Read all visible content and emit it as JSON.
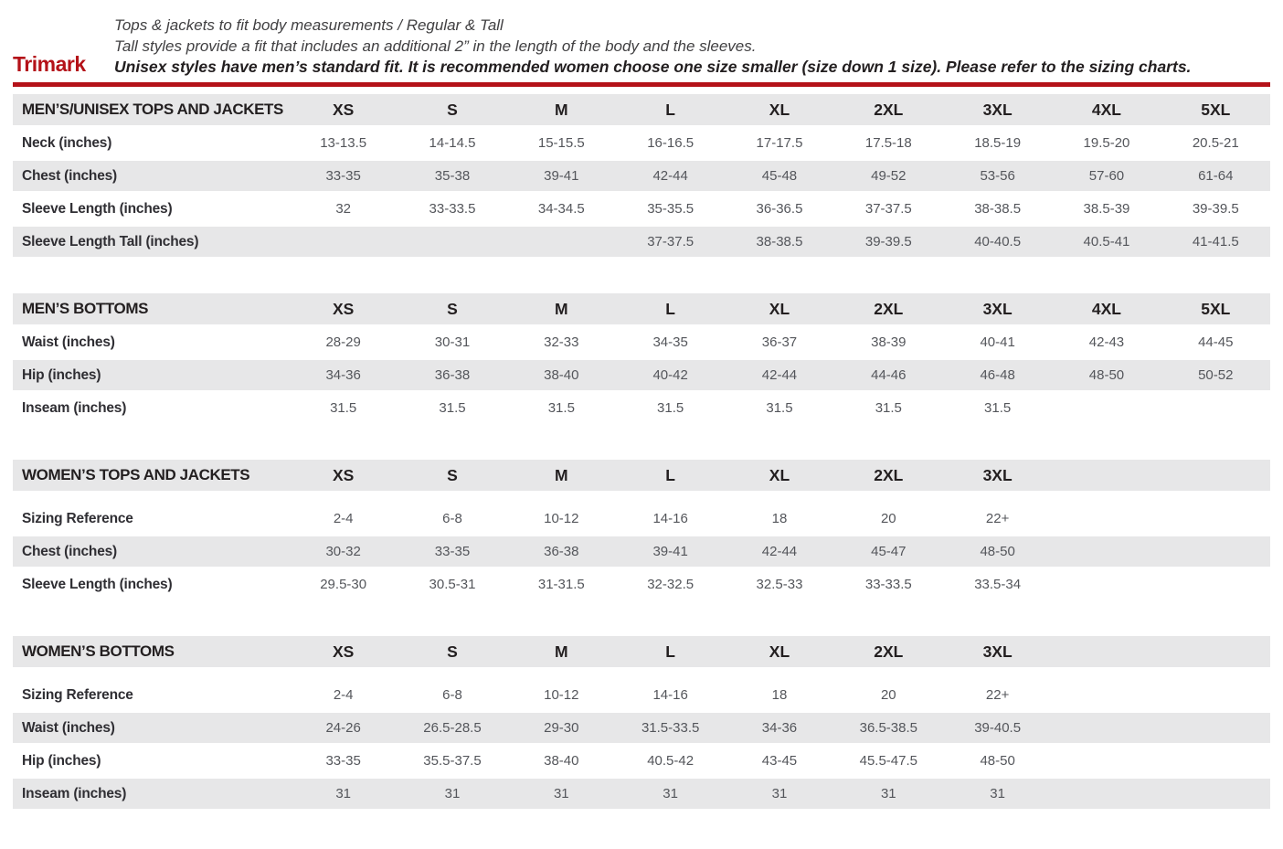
{
  "brand": "Trimark",
  "intro": {
    "line1": "Tops & jackets to fit body measurements / Regular & Tall",
    "line2": "Tall styles provide a fit that includes an additional 2” in the length of the body and the sleeves.",
    "line3": "Unisex styles have men’s standard fit. It is recommended women choose one size smaller (size down 1 size).  Please refer to the sizing charts."
  },
  "colors": {
    "accent_red": "#b41219",
    "row_stripe_gray": "#e7e7e8"
  },
  "tables": [
    {
      "title": "MEN’S/UNISEX TOPS AND JACKETS",
      "columns": [
        "XS",
        "S",
        "M",
        "L",
        "XL",
        "2XL",
        "3XL",
        "4XL",
        "5XL"
      ],
      "rows": [
        {
          "label": "Neck (inches)",
          "values": [
            "13-13.5",
            "14-14.5",
            "15-15.5",
            "16-16.5",
            "17-17.5",
            "17.5-18",
            "18.5-19",
            "19.5-20",
            "20.5-21"
          ]
        },
        {
          "label": "Chest (inches)",
          "values": [
            "33-35",
            "35-38",
            "39-41",
            "42-44",
            "45-48",
            "49-52",
            "53-56",
            "57-60",
            "61-64"
          ]
        },
        {
          "label": "Sleeve Length (inches)",
          "values": [
            "32",
            "33-33.5",
            "34-34.5",
            "35-35.5",
            "36-36.5",
            "37-37.5",
            "38-38.5",
            "38.5-39",
            "39-39.5"
          ]
        },
        {
          "label": "Sleeve Length Tall (inches)",
          "values": [
            "",
            "",
            "",
            "37-37.5",
            "38-38.5",
            "39-39.5",
            "40-40.5",
            "40.5-41",
            "41-41.5"
          ]
        }
      ]
    },
    {
      "title": "MEN’S BOTTOMS",
      "columns": [
        "XS",
        "S",
        "M",
        "L",
        "XL",
        "2XL",
        "3XL",
        "4XL",
        "5XL"
      ],
      "rows": [
        {
          "label": "Waist (inches)",
          "values": [
            "28-29",
            "30-31",
            "32-33",
            "34-35",
            "36-37",
            "38-39",
            "40-41",
            "42-43",
            "44-45"
          ]
        },
        {
          "label": "Hip (inches)",
          "values": [
            "34-36",
            "36-38",
            "38-40",
            "40-42",
            "42-44",
            "44-46",
            "46-48",
            "48-50",
            "50-52"
          ]
        },
        {
          "label": "Inseam (inches)",
          "values": [
            "31.5",
            "31.5",
            "31.5",
            "31.5",
            "31.5",
            "31.5",
            "31.5",
            "",
            ""
          ]
        }
      ]
    },
    {
      "title": "WOMEN’S TOPS AND JACKETS",
      "columns": [
        "XS",
        "S",
        "M",
        "L",
        "XL",
        "2XL",
        "3XL"
      ],
      "rows": [
        {
          "label": "Sizing Reference",
          "values": [
            "2-4",
            "6-8",
            "10-12",
            "14-16",
            "18",
            "20",
            "22+"
          ]
        },
        {
          "label": "Chest (inches)",
          "values": [
            "30-32",
            "33-35",
            "36-38",
            "39-41",
            "42-44",
            "45-47",
            "48-50"
          ]
        },
        {
          "label": "Sleeve Length (inches)",
          "values": [
            "29.5-30",
            "30.5-31",
            "31-31.5",
            "32-32.5",
            "32.5-33",
            "33-33.5",
            "33.5-34"
          ]
        }
      ]
    },
    {
      "title": "WOMEN’S BOTTOMS",
      "columns": [
        "XS",
        "S",
        "M",
        "L",
        "XL",
        "2XL",
        "3XL"
      ],
      "rows": [
        {
          "label": "Sizing Reference",
          "values": [
            "2-4",
            "6-8",
            "10-12",
            "14-16",
            "18",
            "20",
            "22+"
          ]
        },
        {
          "label": "Waist (inches)",
          "values": [
            "24-26",
            "26.5-28.5",
            "29-30",
            "31.5-33.5",
            "34-36",
            "36.5-38.5",
            "39-40.5"
          ]
        },
        {
          "label": "Hip (inches)",
          "values": [
            "33-35",
            "35.5-37.5",
            "38-40",
            "40.5-42",
            "43-45",
            "45.5-47.5",
            "48-50"
          ]
        },
        {
          "label": "Inseam (inches)",
          "values": [
            "31",
            "31",
            "31",
            "31",
            "31",
            "31",
            "31"
          ]
        }
      ]
    }
  ]
}
